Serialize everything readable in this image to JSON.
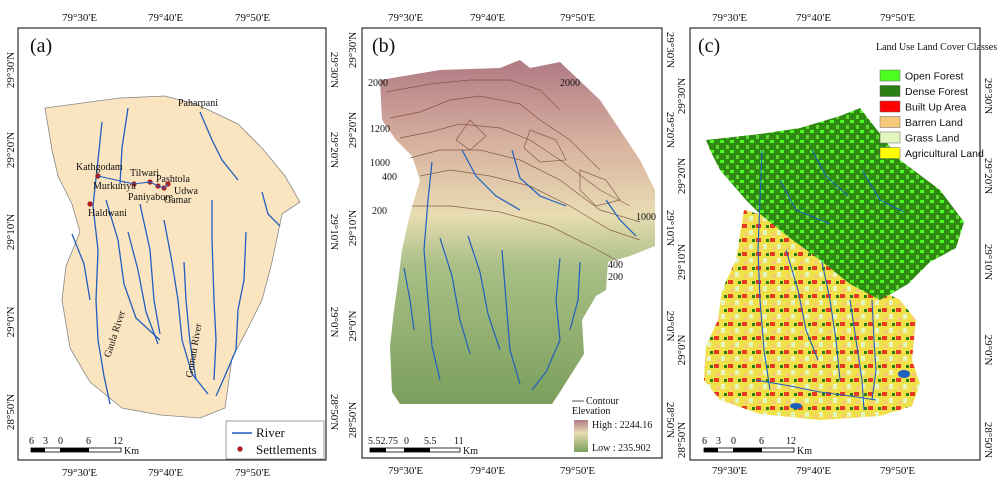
{
  "panels": [
    {
      "letter": "(a)",
      "top_ticks": [
        "79°30'E",
        "79°40'E",
        "79°50'E"
      ],
      "bottom_ticks": [
        "79°30'E",
        "79°40'E",
        "79°50'E"
      ],
      "left_ticks": [
        "29°30'N",
        "29°20'N",
        "29°10'N",
        "29°0'N",
        "28°50'N"
      ],
      "right_ticks": [
        "29°30'N",
        "29°20'N",
        "29°10'N",
        "29°0'N",
        "28°50'N"
      ],
      "places": [
        "Paharpani",
        "Kathgodam",
        "Tilwari",
        "Pashtola",
        "Murkuriya",
        "Paniyabore",
        "Udwa",
        "Gamar",
        "Haldwani"
      ],
      "rivers": [
        "Gaula River",
        "Gomati River"
      ],
      "legend": {
        "river": "River",
        "settlements": "Settlements"
      },
      "scale": {
        "ticks": [
          "6",
          "3",
          "0",
          "6",
          "12"
        ],
        "unit": "Km"
      }
    },
    {
      "letter": "(b)",
      "top_ticks": [
        "79°30'E",
        "79°40'E",
        "79°50'E"
      ],
      "bottom_ticks": [
        "79°30'E",
        "79°40'E",
        "79°50'E"
      ],
      "left_ticks": [
        "29°30'N",
        "29°20'N",
        "29°10'N",
        "29°0'N",
        "28°50'N"
      ],
      "right_ticks": [
        "29°30'N",
        "29°20'N",
        "29°10'N",
        "29°0'N",
        "28°50'N"
      ],
      "contours": [
        "2000",
        "2000",
        "1200",
        "1000",
        "400",
        "200",
        "1000",
        "400",
        "200"
      ],
      "legend": {
        "contour": "Contour",
        "elevation": "Elevation",
        "high": "High : 2244.16",
        "low": "Low : 235.902"
      },
      "scale": {
        "ticks": [
          "5.52.75",
          "0",
          "5.5",
          "11"
        ],
        "unit": "Km"
      }
    },
    {
      "letter": "(c)",
      "top_ticks": [
        "79°30'E",
        "79°40'E",
        "79°50'E"
      ],
      "bottom_ticks": [
        "79°30'E",
        "79°40'E",
        "79°50'E"
      ],
      "left_ticks": [
        "29°30'N",
        "29°20'N",
        "29°10'N",
        "29°0'N",
        "28°50'N"
      ],
      "right_ticks": [
        "29°30'N",
        "29°20'N",
        "29°10'N",
        "29°0'N",
        "28°50'N"
      ],
      "legend": {
        "title": "Land Use Land Cover Classes",
        "classes": [
          {
            "label": "Open Forest",
            "color": "#4cff20"
          },
          {
            "label": "Dense Forest",
            "color": "#2a7d10"
          },
          {
            "label": "Built Up Area",
            "color": "#ff0000"
          },
          {
            "label": "Barren Land",
            "color": "#f7c97a"
          },
          {
            "label": "Grass Land",
            "color": "#e4f7c0"
          },
          {
            "label": "Agricultural Land",
            "color": "#ffff00"
          }
        ]
      },
      "scale": {
        "ticks": [
          "6",
          "3",
          "0",
          "6",
          "12"
        ],
        "unit": "Km"
      }
    }
  ],
  "colors": {
    "river": "#1f5fbf",
    "region_a": "#fbe4c0",
    "settlement": "#b01c1c"
  }
}
